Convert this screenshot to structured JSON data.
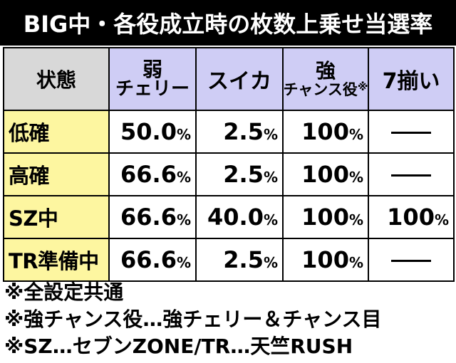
{
  "title": "BIG中・各役成立時の枚数上乗せ当選率",
  "table": {
    "header": {
      "state": "状態",
      "weak_cherry_top": "弱",
      "weak_cherry_bottom": "チェリー",
      "suika": "スイカ",
      "strong_chance_top": "強",
      "strong_chance_bottom": "チャンス役",
      "strong_chance_mark": "※",
      "seven_align": "7揃い"
    },
    "rows": [
      {
        "state": "低確",
        "weak_cherry": "50.0",
        "suika": "2.5",
        "strong_chance": "100",
        "seven_align": null
      },
      {
        "state": "高確",
        "weak_cherry": "66.6",
        "suika": "2.5",
        "strong_chance": "100",
        "seven_align": null
      },
      {
        "state": "SZ中",
        "weak_cherry": "66.6",
        "suika": "40.0",
        "strong_chance": "100",
        "seven_align": "100"
      },
      {
        "state": "TR準備中",
        "weak_cherry": "66.6",
        "suika": "2.5",
        "strong_chance": "100",
        "seven_align": null
      }
    ],
    "percent_sign": "%"
  },
  "notes": [
    "※全設定共通",
    "※強チャンス役…強チェリー＆チャンス目",
    "※SZ…セブンZONE/TR…天竺RUSH"
  ],
  "colors": {
    "title_bg": "#000000",
    "title_text": "#ffffff",
    "header_bg": "#cfcdf5",
    "corner_bg": "#d8d8d8",
    "state_bg": "#fdf6a0",
    "border": "#000000"
  }
}
